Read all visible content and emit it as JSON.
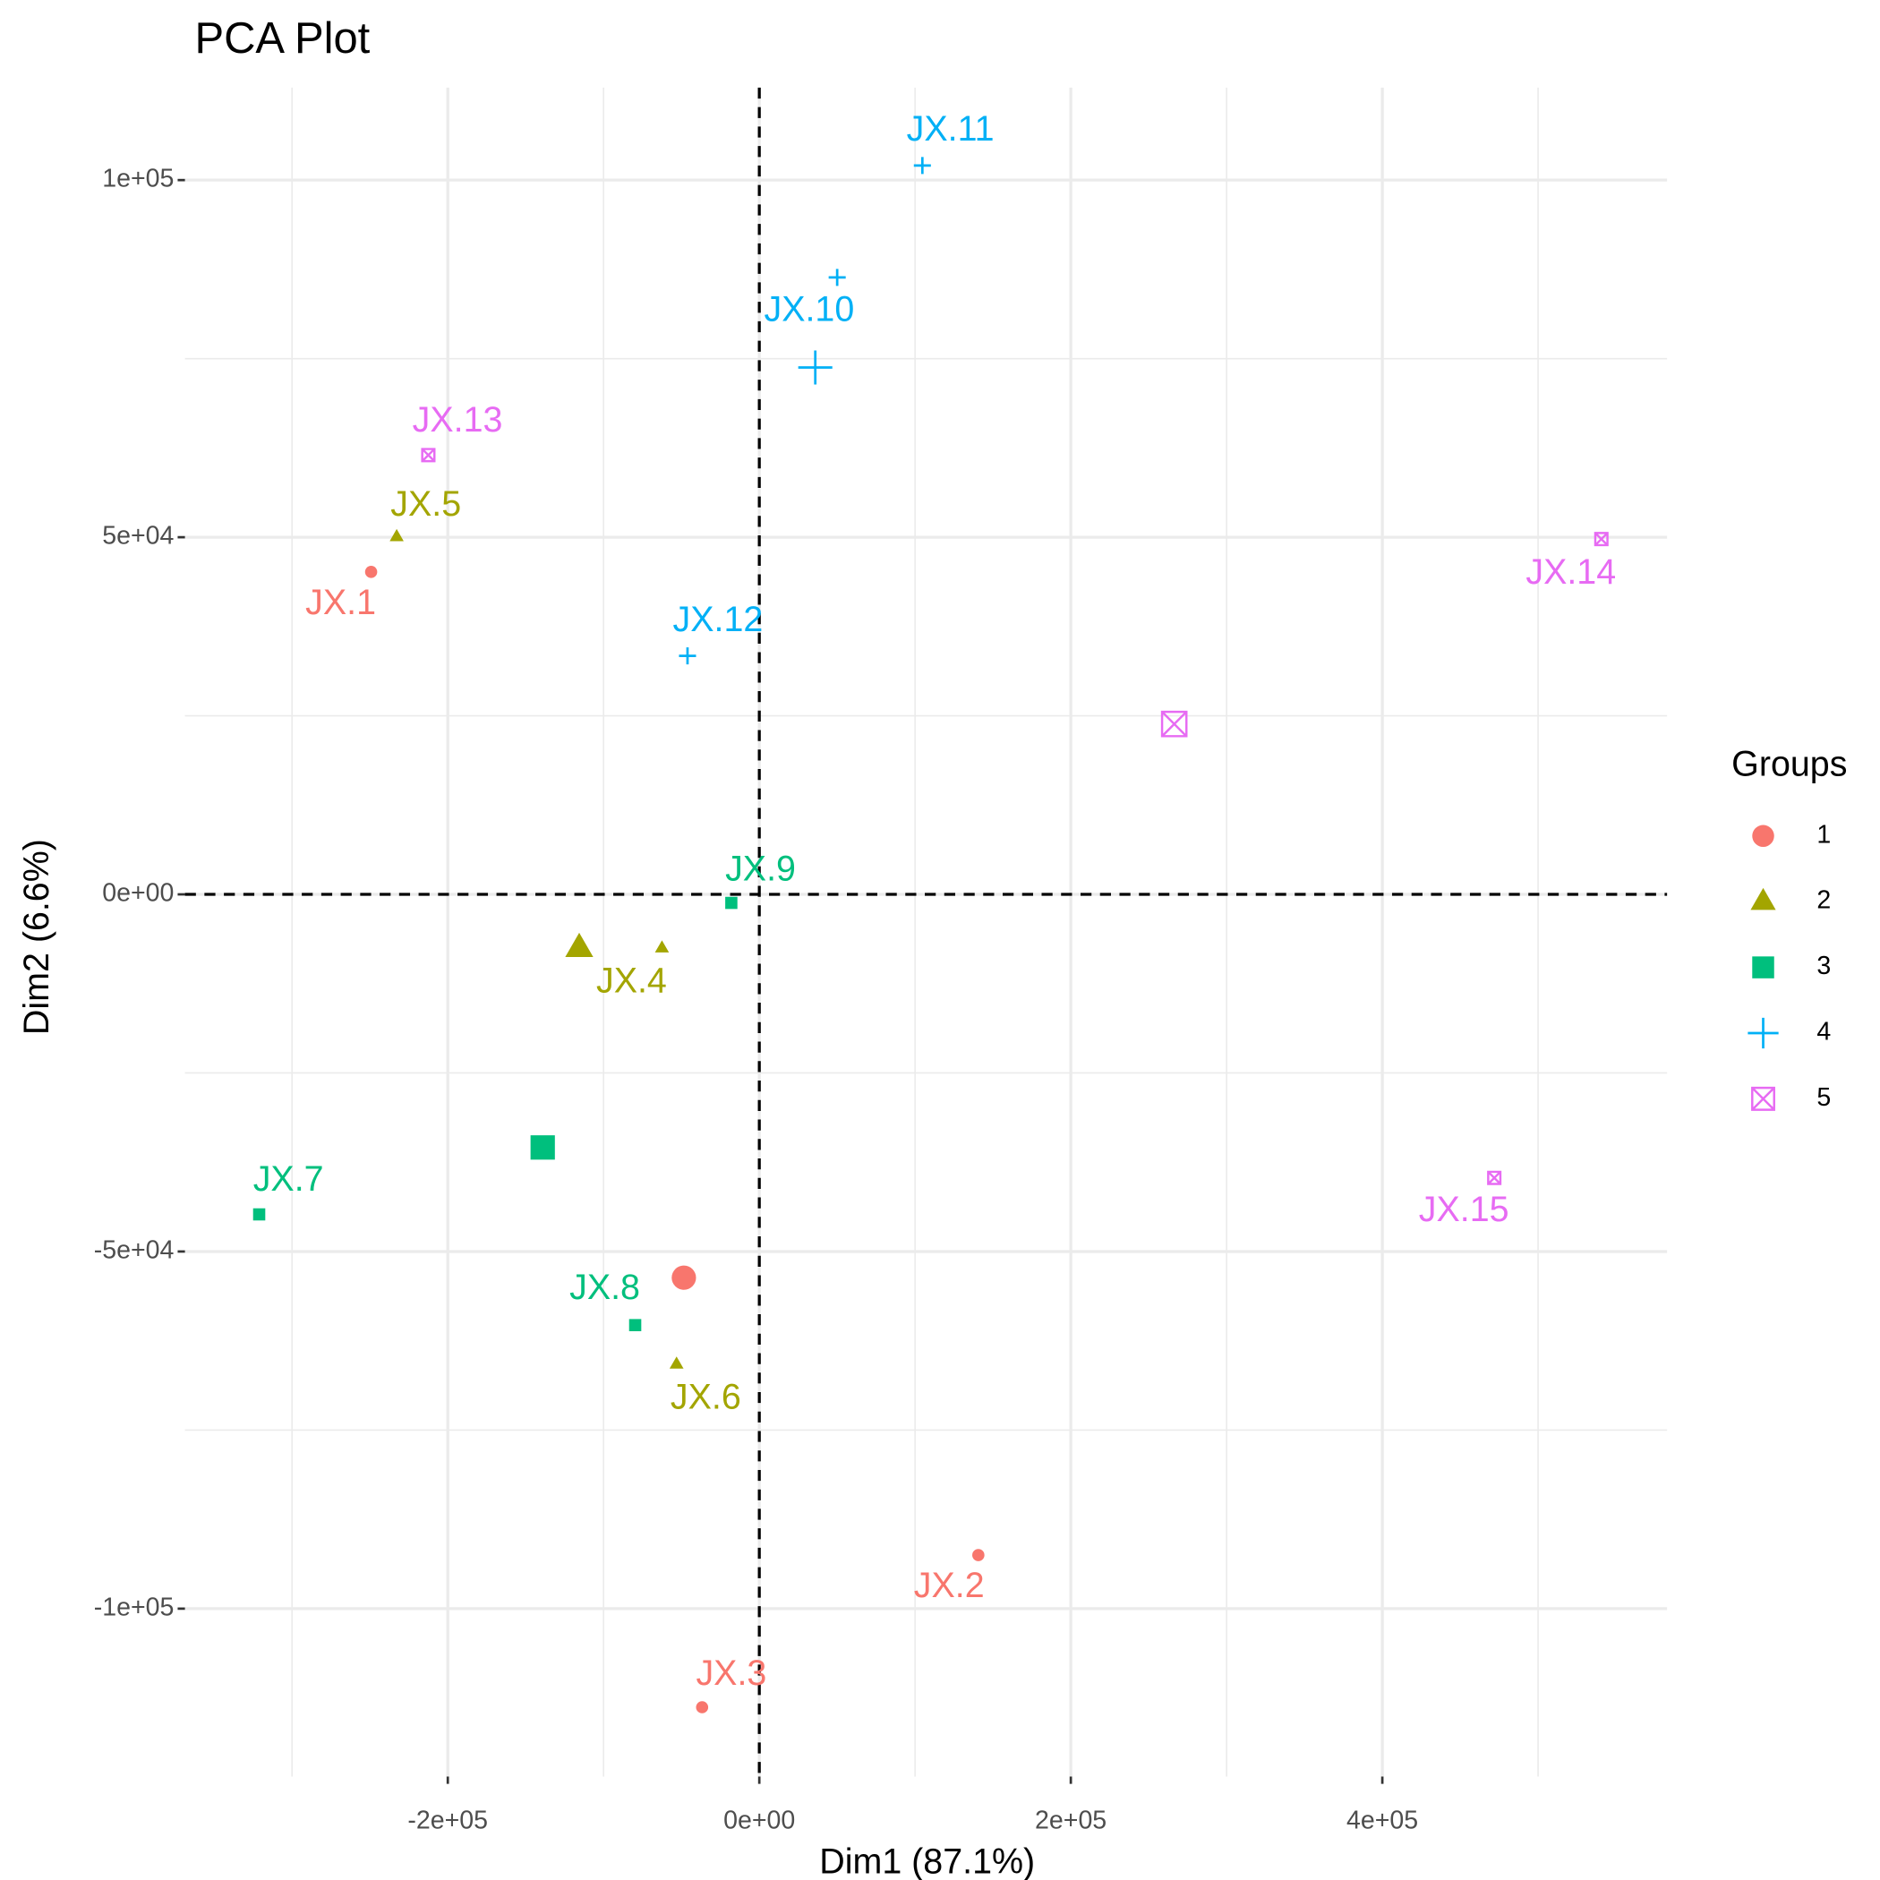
{
  "chart_data": {
    "type": "scatter",
    "title": "PCA Plot",
    "x_label": "Dim1 (87.1%)",
    "y_label": "Dim2 (6.6%)",
    "legend_title": "Groups",
    "legend_position": "right",
    "grid": true,
    "reference_lines": {
      "x": 0,
      "y": 0
    },
    "xlim": [
      -368750,
      582800
    ],
    "ylim": [
      -123509,
      112947
    ],
    "xticks": [
      {
        "value": -200000,
        "label": "-2e+05"
      },
      {
        "value": 0,
        "label": "0e+00"
      },
      {
        "value": 200000,
        "label": "2e+05"
      },
      {
        "value": 400000,
        "label": "4e+05"
      }
    ],
    "yticks": [
      {
        "value": -100000,
        "label": "-1e+05"
      },
      {
        "value": -50000,
        "label": "-5e+04"
      },
      {
        "value": 0,
        "label": "0e+00"
      },
      {
        "value": 50000,
        "label": "5e+04"
      },
      {
        "value": 100000,
        "label": "1e+05"
      }
    ],
    "series": [
      {
        "name": "1",
        "color": "#F8766D",
        "shape": "circle",
        "labels": [
          "JX.1",
          "JX.2",
          "JX.3"
        ],
        "x": [
          -249219,
          140625,
          -36719
        ],
        "y": [
          45145,
          -92504,
          -113799
        ],
        "centroid_x": -48438,
        "centroid_y": -53663
      },
      {
        "name": "2",
        "color": "#A3A500",
        "shape": "triangle",
        "labels": [
          "JX.4",
          "JX.5",
          "JX.6"
        ],
        "x": [
          -62500,
          -232813,
          -53125
        ],
        "y": [
          -7496,
          50085,
          -65758
        ],
        "centroid_x": -115625,
        "centroid_y": -7496
      },
      {
        "name": "3",
        "color": "#00BF7D",
        "shape": "square",
        "labels": [
          "JX.7",
          "JX.8",
          "JX.9"
        ],
        "x": [
          -321094,
          -79688,
          -17969
        ],
        "y": [
          -44804,
          -60307,
          -1193
        ],
        "centroid_x": -139063,
        "centroid_y": -35434
      },
      {
        "name": "4",
        "color": "#00B0F6",
        "shape": "plus",
        "labels": [
          "JX.10",
          "JX.11",
          "JX.12"
        ],
        "x": [
          50000,
          104688,
          -46094
        ],
        "y": [
          86371,
          102044,
          33390
        ],
        "centroid_x": 35938,
        "centroid_y": 73765
      },
      {
        "name": "5",
        "color": "#E76BF3",
        "shape": "boxx",
        "labels": [
          "JX.13",
          "JX.14",
          "JX.15"
        ],
        "x": [
          -212500,
          540625,
          471875
        ],
        "y": [
          61499,
          49744,
          -39693
        ],
        "centroid_x": 266406,
        "centroid_y": 23850
      }
    ]
  }
}
